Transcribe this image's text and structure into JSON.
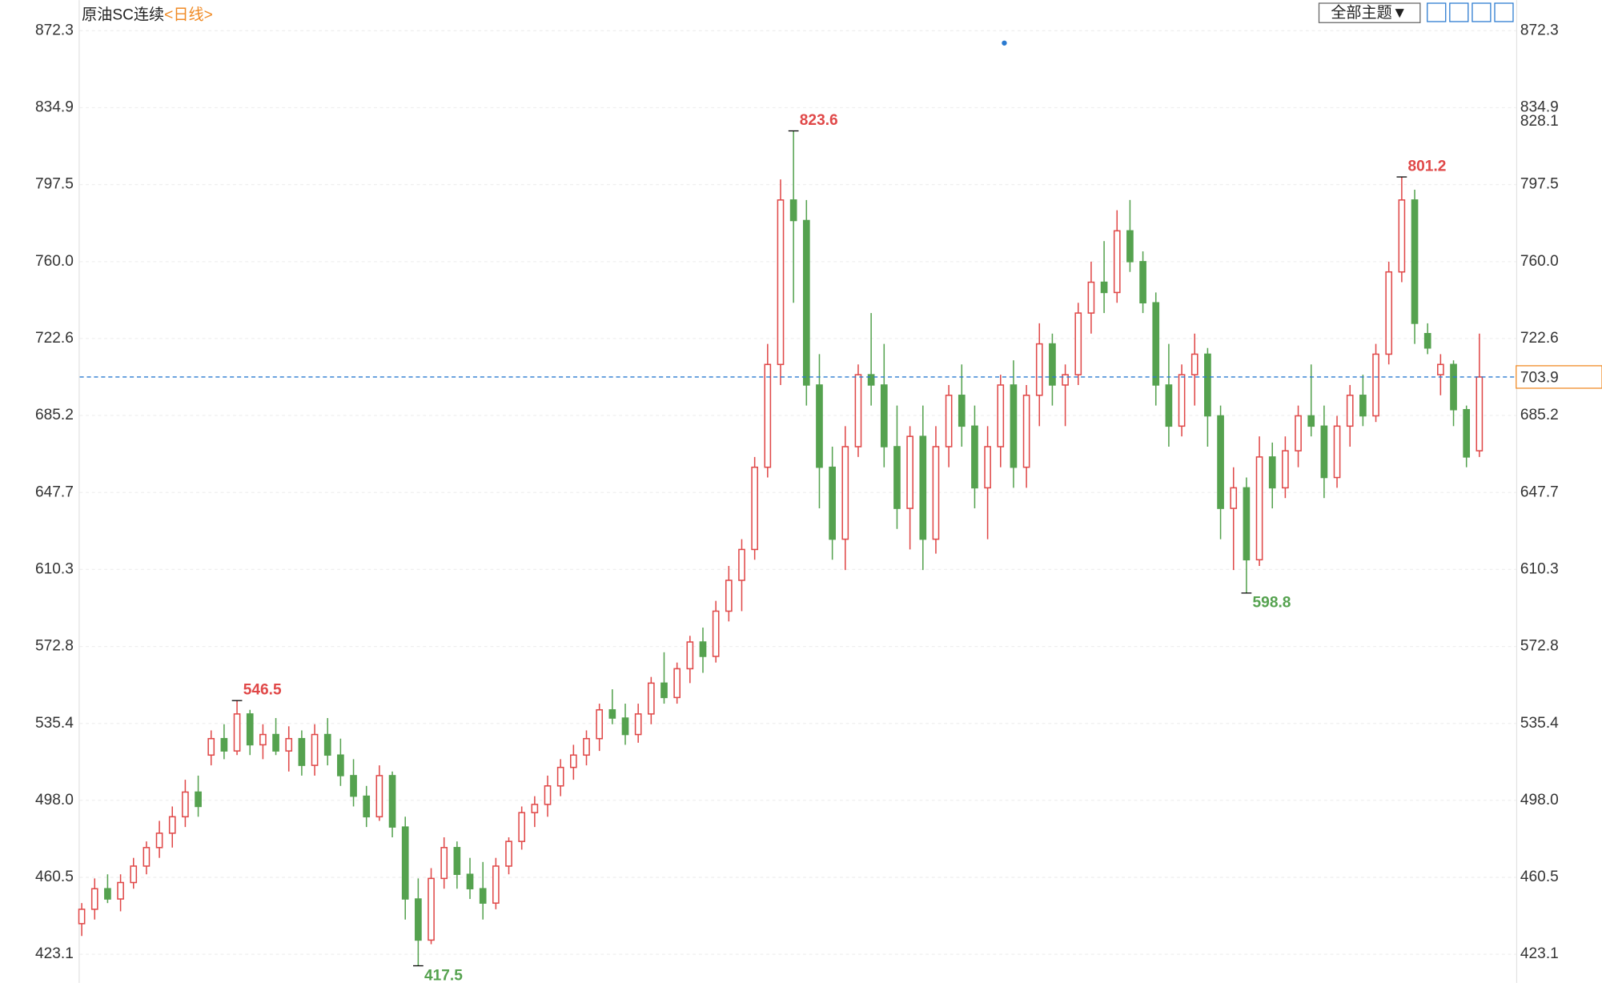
{
  "chart_data": {
    "type": "candlestick",
    "title": "原油SC连续",
    "subtitle": "<日线>",
    "theme_button": "全部主题▼",
    "ylim": [
      409.2,
      887.2
    ],
    "yticks": [
      {
        "value": 423.1,
        "label": "423.1"
      },
      {
        "value": 460.5,
        "label": "460.5"
      },
      {
        "value": 498.0,
        "label": "498.0"
      },
      {
        "value": 535.4,
        "label": "535.4"
      },
      {
        "value": 572.8,
        "label": "572.8"
      },
      {
        "value": 610.3,
        "label": "610.3"
      },
      {
        "value": 647.7,
        "label": "647.7"
      },
      {
        "value": 685.2,
        "label": "685.2"
      },
      {
        "value": 722.6,
        "label": "722.6"
      },
      {
        "value": 760.0,
        "label": "760.0"
      },
      {
        "value": 797.5,
        "label": "797.5"
      },
      {
        "value": 834.9,
        "label": "834.9"
      },
      {
        "value": 872.3,
        "label": "872.3"
      }
    ],
    "grid": true,
    "up_color": "#e04848",
    "down_color": "#55a24f",
    "series": [
      {
        "open": [
          438,
          445,
          455,
          450,
          458,
          466,
          475,
          482,
          490,
          502,
          520,
          528,
          522,
          540,
          525,
          530,
          522,
          528,
          515,
          530,
          520,
          510,
          500,
          490,
          510,
          485,
          450,
          430,
          460,
          475,
          462,
          455,
          448,
          466,
          478,
          492,
          496,
          505,
          514,
          520,
          528,
          542,
          538,
          530,
          540,
          555,
          548,
          562,
          575,
          568,
          590,
          605,
          620,
          660,
          710,
          790,
          780,
          700,
          660,
          625,
          670,
          705,
          700,
          670,
          640,
          675,
          625,
          670,
          695,
          680,
          650,
          670,
          700,
          660,
          695,
          720,
          700,
          705,
          735,
          750,
          745,
          775,
          760,
          740,
          700,
          680,
          705,
          715,
          685,
          640,
          650,
          615,
          665,
          650,
          668,
          685,
          680,
          655,
          680,
          695,
          685,
          715,
          755,
          790,
          725,
          705,
          710,
          688,
          668
        ],
        "high": [
          448,
          460,
          462,
          462,
          470,
          478,
          488,
          495,
          508,
          510,
          532,
          535,
          546.5,
          542,
          535,
          538,
          534,
          532,
          535,
          538,
          528,
          518,
          505,
          515,
          512,
          490,
          460,
          465,
          480,
          478,
          470,
          468,
          470,
          480,
          495,
          500,
          510,
          518,
          525,
          532,
          545,
          552,
          545,
          545,
          558,
          570,
          565,
          578,
          582,
          595,
          612,
          625,
          665,
          720,
          800,
          823.6,
          790,
          715,
          670,
          680,
          710,
          735,
          720,
          690,
          680,
          690,
          680,
          700,
          710,
          690,
          680,
          705,
          712,
          700,
          730,
          725,
          710,
          740,
          760,
          770,
          785,
          790,
          765,
          745,
          720,
          710,
          725,
          718,
          690,
          660,
          655,
          675,
          672,
          675,
          690,
          710,
          690,
          685,
          700,
          705,
          720,
          760,
          801.2,
          795,
          730,
          715,
          712,
          690,
          725
        ],
        "low": [
          432,
          440,
          448,
          444,
          455,
          462,
          470,
          475,
          485,
          490,
          515,
          518,
          520,
          520,
          518,
          520,
          512,
          510,
          510,
          515,
          505,
          495,
          485,
          488,
          480,
          440,
          417.5,
          428,
          455,
          455,
          450,
          440,
          445,
          462,
          474,
          485,
          490,
          500,
          508,
          515,
          522,
          535,
          525,
          526,
          535,
          545,
          545,
          555,
          560,
          565,
          585,
          590,
          615,
          655,
          700,
          740,
          690,
          640,
          615,
          610,
          665,
          690,
          660,
          630,
          620,
          610,
          618,
          660,
          670,
          640,
          625,
          660,
          650,
          650,
          680,
          690,
          680,
          700,
          725,
          735,
          740,
          755,
          735,
          690,
          670,
          675,
          690,
          670,
          625,
          610,
          598.8,
          612,
          640,
          645,
          660,
          675,
          645,
          650,
          670,
          680,
          682,
          710,
          750,
          720,
          715,
          695,
          680,
          660,
          665
        ],
        "close": [
          445,
          455,
          450,
          458,
          466,
          475,
          482,
          490,
          502,
          495,
          528,
          522,
          540,
          525,
          530,
          522,
          528,
          515,
          530,
          520,
          510,
          500,
          490,
          510,
          485,
          450,
          430,
          460,
          475,
          462,
          455,
          448,
          466,
          478,
          492,
          496,
          505,
          514,
          520,
          528,
          542,
          538,
          530,
          540,
          555,
          548,
          562,
          575,
          568,
          590,
          605,
          620,
          660,
          710,
          790,
          780,
          700,
          660,
          625,
          670,
          705,
          700,
          670,
          640,
          675,
          625,
          670,
          695,
          680,
          650,
          670,
          700,
          660,
          695,
          720,
          700,
          705,
          735,
          750,
          745,
          775,
          760,
          740,
          700,
          680,
          705,
          715,
          685,
          640,
          650,
          615,
          665,
          650,
          668,
          685,
          680,
          655,
          680,
          695,
          685,
          715,
          755,
          790,
          730,
          718,
          710,
          688,
          665,
          703.9
        ]
      }
    ],
    "annotations": {
      "highs": [
        546.5,
        823.6,
        801.2
      ],
      "lows": [
        417.5,
        598.8
      ]
    },
    "last_price": 703.9,
    "right_marker": 828.1
  }
}
